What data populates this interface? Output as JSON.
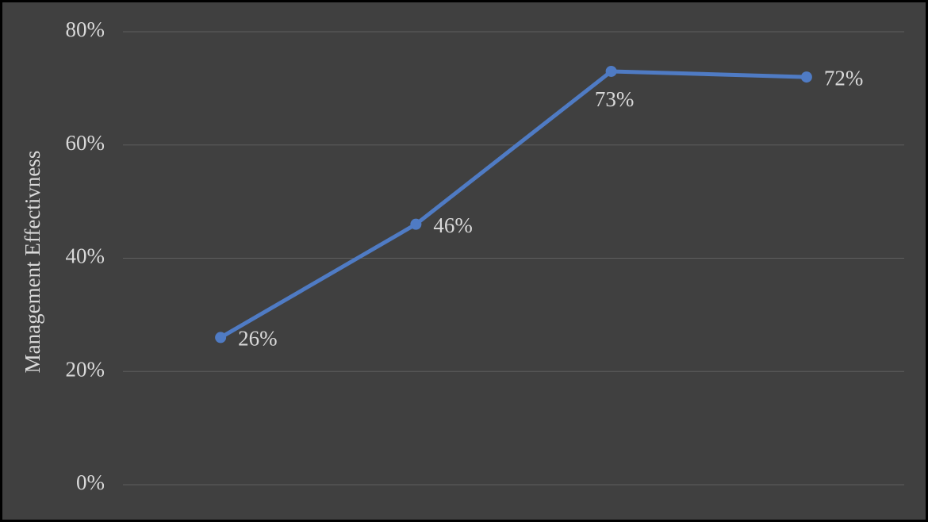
{
  "chart_data": {
    "type": "line",
    "y_axis_label": "Management Effectivness",
    "categories": [
      null,
      null,
      null,
      null
    ],
    "series": [
      {
        "name": null,
        "color": "#4f7bc4",
        "values": [
          26,
          46,
          73,
          72
        ],
        "value_labels": [
          "26%",
          "46%",
          "73%",
          "72%"
        ]
      }
    ],
    "ylim": [
      0,
      80
    ],
    "yticks": [
      {
        "value": 0,
        "label": "0%"
      },
      {
        "value": 20,
        "label": "20%"
      },
      {
        "value": 40,
        "label": "40%"
      },
      {
        "value": 60,
        "label": "60%"
      },
      {
        "value": 80,
        "label": "80%"
      }
    ],
    "grid": true
  }
}
